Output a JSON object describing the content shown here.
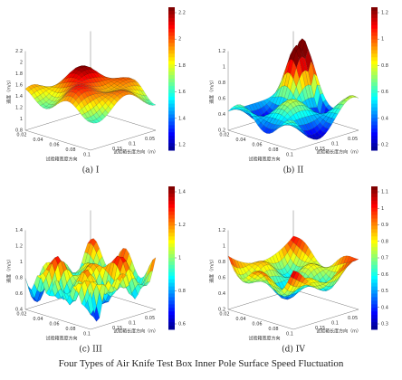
{
  "caption": "Four Types of Air Knife Test Box Inner Pole Surface Speed Fluctuation",
  "panels": [
    {
      "label": "(a) I",
      "z_label": "速度（m/s）",
      "width_label": "试验箱宽度方向",
      "length_label": "试验箱长度方向（m）",
      "z_ticks": [
        2.2,
        2,
        1.8,
        1.6,
        1.4,
        1.2,
        1,
        0.8
      ],
      "colorbar_ticks": [
        2.2,
        2,
        1.8,
        1.6,
        1.4,
        1.2
      ],
      "width_ticks": [
        0.1,
        0.08,
        0.06,
        0.04,
        0.02
      ],
      "length_ticks": [
        0.05,
        0.1,
        0.15
      ]
    },
    {
      "label": "(b) II",
      "z_label": "速度（m/s）",
      "width_label": "试验箱宽度方向",
      "length_label": "试验箱长度方向（m）",
      "z_ticks": [
        1.2,
        1,
        0.8,
        0.6,
        0.4,
        0.2
      ],
      "colorbar_ticks": [
        1.2,
        1,
        0.8,
        0.6,
        0.4,
        0.2
      ],
      "width_ticks": [
        0.1,
        0.08,
        0.06,
        0.04,
        0.02
      ],
      "length_ticks": [
        0.05,
        0.1,
        0.15
      ]
    },
    {
      "label": "(c) III",
      "z_label": "速度（m/s）",
      "width_label": "试验箱宽度方向",
      "length_label": "试验箱长度方向（m）",
      "z_ticks": [
        1.4,
        1.2,
        1,
        0.8,
        0.6,
        0.4
      ],
      "colorbar_ticks": [
        1.4,
        1.2,
        1,
        0.8,
        0.6
      ],
      "width_ticks": [
        0.1,
        0.08,
        0.06,
        0.04,
        0.02
      ],
      "length_ticks": [
        0.05,
        0.1,
        0.15
      ]
    },
    {
      "label": "(d) IV",
      "z_label": "速度（m/s）",
      "width_label": "试验箱宽度方向",
      "length_label": "试验箱长度方向（m）",
      "z_ticks": [
        1.2,
        1,
        0.8,
        0.6,
        0.4,
        0.2
      ],
      "colorbar_ticks": [
        1.1,
        1,
        0.9,
        0.8,
        0.7,
        0.6,
        0.5,
        0.4,
        0.3
      ],
      "width_ticks": [
        0.1,
        0.08,
        0.06,
        0.04,
        0.02
      ],
      "length_ticks": [
        0.05,
        0.1,
        0.15
      ]
    }
  ]
}
